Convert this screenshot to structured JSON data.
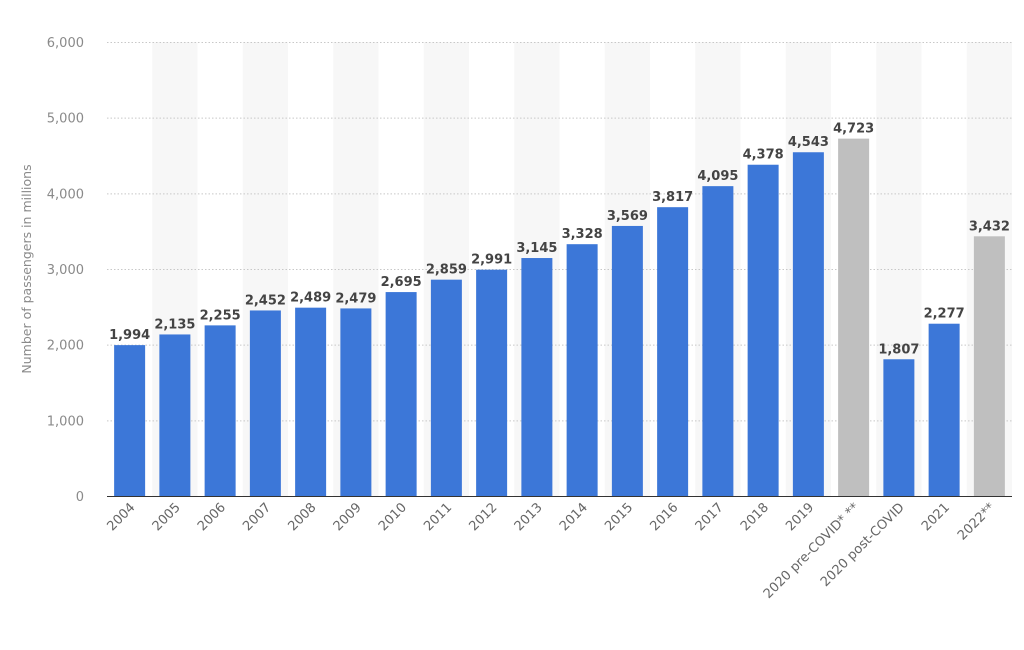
{
  "chart_data": {
    "type": "bar",
    "categories": [
      "2004",
      "2005",
      "2006",
      "2007",
      "2008",
      "2009",
      "2010",
      "2011",
      "2012",
      "2013",
      "2014",
      "2015",
      "2016",
      "2017",
      "2018",
      "2019",
      "2020 pre-COVID* **",
      "2020 post-COVID",
      "2021",
      "2022**"
    ],
    "values": [
      1994,
      2135,
      2255,
      2452,
      2489,
      2479,
      2695,
      2859,
      2991,
      3145,
      3328,
      3569,
      3817,
      4095,
      4378,
      4543,
      4723,
      1807,
      2277,
      3432
    ],
    "value_labels": [
      "1,994",
      "2,135",
      "2,255",
      "2,452",
      "2,489",
      "2,479",
      "2,695",
      "2,859",
      "2,991",
      "3,145",
      "3,328",
      "3,569",
      "3,817",
      "4,095",
      "4,378",
      "4,543",
      "4,723",
      "1,807",
      "2,277",
      "3,432"
    ],
    "highlight": [
      false,
      false,
      false,
      false,
      false,
      false,
      false,
      false,
      false,
      false,
      false,
      false,
      false,
      false,
      false,
      false,
      true,
      false,
      false,
      true
    ],
    "colors": {
      "bar": "#3c77d8",
      "highlight": "#bfbfbf",
      "band": "#f7f7f7"
    },
    "title": "",
    "xlabel": "",
    "ylabel": "Number of passengers in millions",
    "ylim": [
      0,
      6000
    ],
    "yticks": [
      0,
      1000,
      2000,
      3000,
      4000,
      5000,
      6000
    ],
    "ytick_labels": [
      "0",
      "1,000",
      "2,000",
      "3,000",
      "4,000",
      "5,000",
      "6,000"
    ],
    "grid": true
  }
}
